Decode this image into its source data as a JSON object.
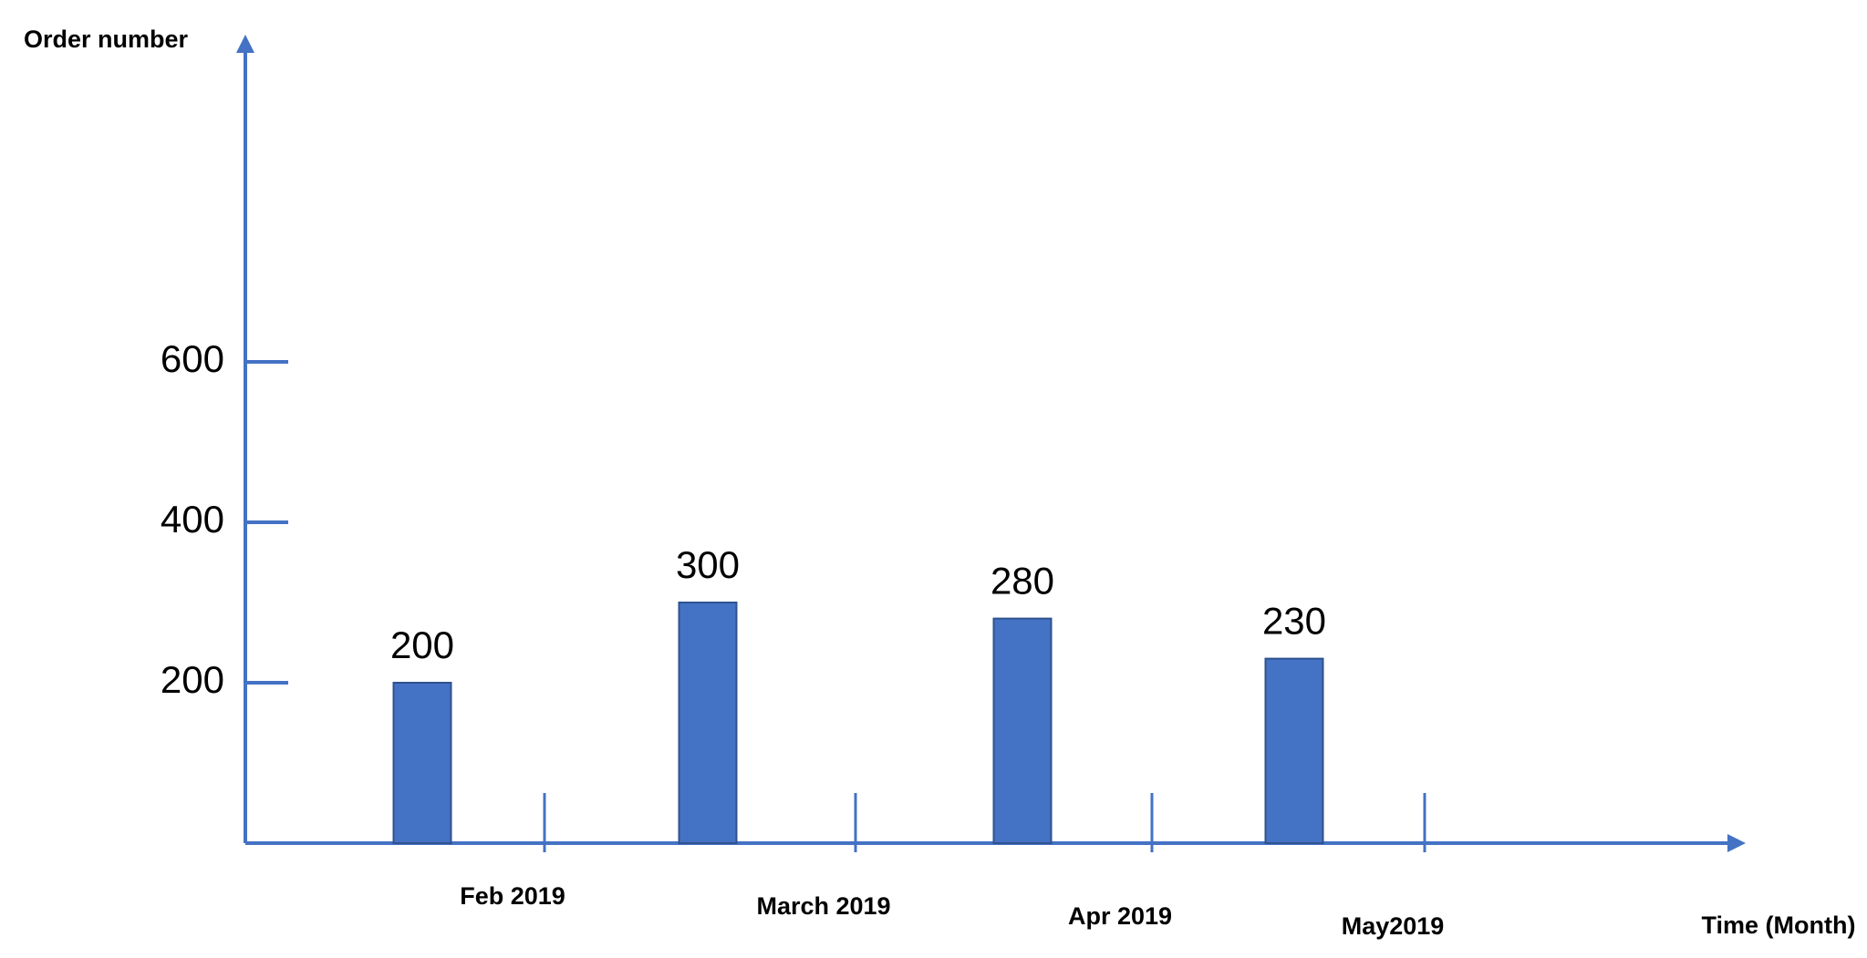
{
  "chart_data": {
    "type": "bar",
    "y_label": "Order number",
    "x_label": "Time (Month)",
    "categories": [
      "Feb 2019",
      "March 2019",
      "Apr 2019",
      "May2019"
    ],
    "values": [
      200,
      300,
      280,
      230
    ],
    "color": "#4472c4",
    "ylim": [
      0,
      1000
    ],
    "yticks": [
      200,
      400,
      600
    ]
  }
}
